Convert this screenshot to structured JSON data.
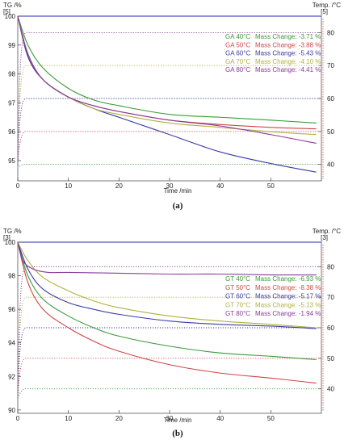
{
  "chart_data": [
    {
      "type": "line",
      "caption": "(a)",
      "xlabel": "Time /min",
      "ylabel": "TG /%",
      "ylabel_tag": "[5]",
      "y2label": "Temp. /°C",
      "y2label_tag": "[5]",
      "xlim": [
        0,
        60
      ],
      "ylim": [
        94.3,
        100
      ],
      "y2lim": [
        35,
        85
      ],
      "x_ticks": [
        0,
        10,
        20,
        30,
        40,
        50
      ],
      "y_ticks": [
        95,
        96,
        97,
        98,
        99,
        100
      ],
      "y2_ticks": [
        40,
        50,
        60,
        70,
        80
      ],
      "legend_position": "top-right",
      "grid": false,
      "series": [
        {
          "name": "GA 40°C",
          "legend_text": "Mass Change: -3.71 %",
          "color": "#3a9a3a",
          "tg": [
            [
              0,
              100
            ],
            [
              2,
              99.0
            ],
            [
              5,
              98.2
            ],
            [
              10,
              97.5
            ],
            [
              15,
              97.1
            ],
            [
              20,
              96.9
            ],
            [
              30,
              96.6
            ],
            [
              40,
              96.5
            ],
            [
              50,
              96.4
            ],
            [
              59,
              96.3
            ]
          ],
          "temp": 40
        },
        {
          "name": "GA 50°C",
          "legend_text": "Mass Change: -3.88 %",
          "color": "#d04545",
          "tg": [
            [
              0,
              100
            ],
            [
              2,
              98.6
            ],
            [
              5,
              97.8
            ],
            [
              10,
              97.2
            ],
            [
              15,
              96.9
            ],
            [
              20,
              96.7
            ],
            [
              30,
              96.4
            ],
            [
              40,
              96.25
            ],
            [
              50,
              96.15
            ],
            [
              59,
              96.1
            ]
          ],
          "temp": 50
        },
        {
          "name": "GA 60°C",
          "legend_text": "Mass Change: -5.43 %",
          "color": "#3a3aa5",
          "tg": [
            [
              0,
              100
            ],
            [
              2,
              98.6
            ],
            [
              5,
              97.8
            ],
            [
              10,
              97.2
            ],
            [
              15,
              96.8
            ],
            [
              20,
              96.5
            ],
            [
              30,
              95.9
            ],
            [
              40,
              95.3
            ],
            [
              50,
              94.9
            ],
            [
              59,
              94.6
            ]
          ],
          "temp": 60
        },
        {
          "name": "GA 70°C",
          "legend_text": "Mass Change: -4.10 %",
          "color": "#b0b040",
          "tg": [
            [
              0,
              100
            ],
            [
              2,
              98.7
            ],
            [
              5,
              97.8
            ],
            [
              10,
              97.2
            ],
            [
              15,
              96.8
            ],
            [
              20,
              96.6
            ],
            [
              30,
              96.3
            ],
            [
              40,
              96.15
            ],
            [
              50,
              96.0
            ],
            [
              59,
              95.9
            ]
          ],
          "temp": 70
        },
        {
          "name": "GA 80°C",
          "legend_text": "Mass Change: -4.41 %",
          "color": "#8a3a9a",
          "tg": [
            [
              0,
              100
            ],
            [
              2,
              98.7
            ],
            [
              5,
              97.8
            ],
            [
              10,
              97.2
            ],
            [
              15,
              96.9
            ],
            [
              20,
              96.7
            ],
            [
              30,
              96.4
            ],
            [
              40,
              96.2
            ],
            [
              50,
              95.9
            ],
            [
              59,
              95.6
            ]
          ],
          "temp": 80
        }
      ]
    },
    {
      "type": "line",
      "caption": "(b)",
      "xlabel": "Time /min",
      "ylabel": "TG /%",
      "ylabel_tag": "[3]",
      "y2label": "Temp. /°C",
      "y2label_tag": "[3]",
      "xlim": [
        0,
        60
      ],
      "ylim": [
        89.8,
        100
      ],
      "y2lim": [
        32,
        88
      ],
      "x_ticks": [
        0,
        10,
        20,
        30,
        40,
        50
      ],
      "y_ticks": [
        90,
        92,
        94,
        96,
        98,
        100
      ],
      "y2_ticks": [
        40,
        50,
        60,
        70,
        80
      ],
      "legend_position": "right",
      "grid": false,
      "series": [
        {
          "name": "GT 40°C",
          "legend_text": "Mass Change: -6.93 %",
          "color": "#3a9a3a",
          "tg": [
            [
              0,
              100
            ],
            [
              2,
              98.0
            ],
            [
              5,
              96.6
            ],
            [
              10,
              95.6
            ],
            [
              15,
              94.9
            ],
            [
              20,
              94.4
            ],
            [
              30,
              93.8
            ],
            [
              40,
              93.4
            ],
            [
              50,
              93.2
            ],
            [
              59,
              93.0
            ]
          ],
          "temp": 40
        },
        {
          "name": "GT 50°C",
          "legend_text": "Mass Change: -8.38 %",
          "color": "#d04545",
          "tg": [
            [
              0,
              100
            ],
            [
              2,
              97.6
            ],
            [
              5,
              96.0
            ],
            [
              10,
              94.9
            ],
            [
              15,
              94.1
            ],
            [
              20,
              93.5
            ],
            [
              30,
              92.7
            ],
            [
              40,
              92.2
            ],
            [
              50,
              91.9
            ],
            [
              59,
              91.6
            ]
          ],
          "temp": 50
        },
        {
          "name": "GT 60°C",
          "legend_text": "Mass Change: -5.17 %",
          "color": "#3a3aa5",
          "tg": [
            [
              0,
              100
            ],
            [
              2,
              98.4
            ],
            [
              5,
              97.2
            ],
            [
              10,
              96.4
            ],
            [
              15,
              96.0
            ],
            [
              20,
              95.7
            ],
            [
              30,
              95.3
            ],
            [
              40,
              95.1
            ],
            [
              50,
              95.0
            ],
            [
              59,
              94.85
            ]
          ],
          "temp": 60
        },
        {
          "name": "GT 70°C",
          "legend_text": "Mass Change: -5.13 %",
          "color": "#b0b040",
          "tg": [
            [
              0,
              100
            ],
            [
              2,
              98.9
            ],
            [
              5,
              97.9
            ],
            [
              10,
              97.1
            ],
            [
              15,
              96.5
            ],
            [
              20,
              96.1
            ],
            [
              30,
              95.6
            ],
            [
              40,
              95.3
            ],
            [
              50,
              95.1
            ],
            [
              59,
              94.9
            ]
          ],
          "temp": 70
        },
        {
          "name": "GT 80°C",
          "legend_text": "Mass Change: -1.94 %",
          "color": "#8a3a9a",
          "tg": [
            [
              0,
              100
            ],
            [
              1,
              98.9
            ],
            [
              3,
              98.4
            ],
            [
              6,
              98.2
            ],
            [
              10,
              98.2
            ],
            [
              20,
              98.15
            ],
            [
              30,
              98.1
            ],
            [
              40,
              98.1
            ],
            [
              50,
              98.05
            ],
            [
              59,
              98.05
            ]
          ],
          "temp": 80
        }
      ]
    }
  ]
}
